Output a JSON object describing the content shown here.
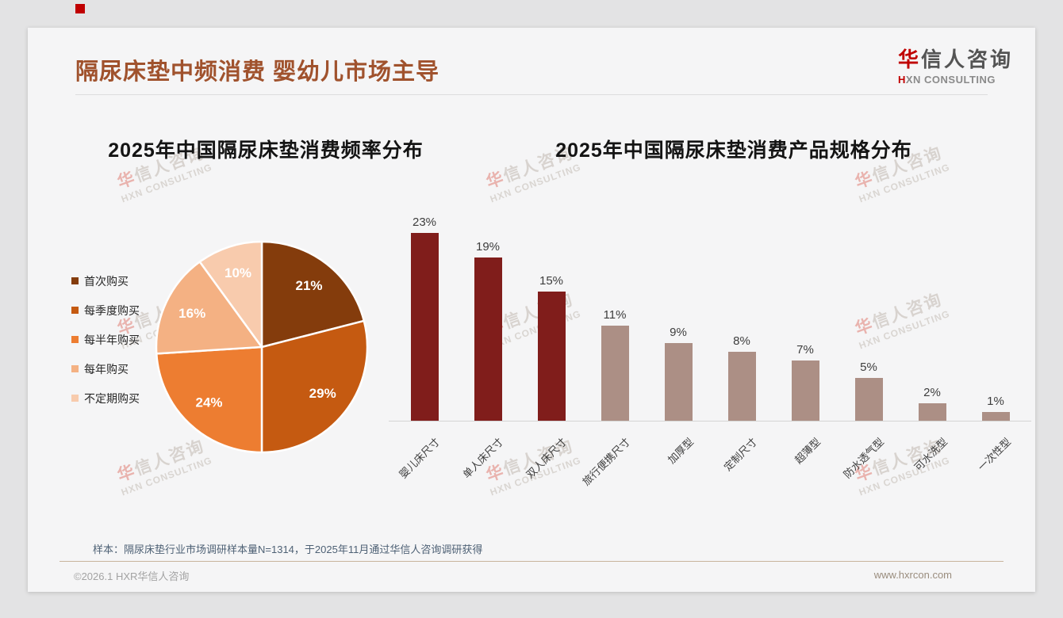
{
  "page": {
    "title": "隔尿床垫中频消费 婴幼儿市场主导"
  },
  "logo": {
    "zh_first": "华",
    "zh_rest": "信人咨询",
    "en_first": "H",
    "en_rest": "XN CONSULTING"
  },
  "watermark": {
    "zh_first": "华",
    "zh_rest": "信人咨询",
    "en": "HXN CONSULTING"
  },
  "colors": {
    "title_accent": "#a0522d",
    "logo_red": "#c00000",
    "bar_highlight": "#801d1b",
    "bar_base": "#ac8f85",
    "divider_tan": "#c8b49c"
  },
  "footer": {
    "sample_note": "样本：隔尿床垫行业市场调研样本量N=1314，于2025年11月通过华信人咨询调研获得",
    "copyright": "©2026.1 HXR华信人咨询",
    "website": "www.hxrcon.com"
  },
  "chart_data": [
    {
      "type": "pie",
      "title": "2025年中国隔尿床垫消费频率分布",
      "labels": [
        "首次购买",
        "每季度购买",
        "每半年购买",
        "每年购买",
        "不定期购买"
      ],
      "values": [
        21,
        29,
        24,
        16,
        10
      ],
      "unit": "%",
      "colors": [
        "#843c0c",
        "#c55a11",
        "#ed7d31",
        "#f4b183",
        "#f8cbad"
      ],
      "legend_position": "left",
      "start_angle_deg": 0,
      "direction": "clockwise",
      "slice_label_color": "#ffffff"
    },
    {
      "type": "bar",
      "title": "2025年中国隔尿床垫消费产品规格分布",
      "categories": [
        "婴儿床尺寸",
        "单人床尺寸",
        "双人床尺寸",
        "旅行便携尺寸",
        "加厚型",
        "定制尺寸",
        "超薄型",
        "防水透气型",
        "可水洗型",
        "一次性型"
      ],
      "values": [
        23,
        19,
        15,
        11,
        9,
        8,
        7,
        5,
        2,
        1
      ],
      "unit": "%",
      "highlight_count": 3,
      "highlight_color": "#801d1b",
      "base_color": "#ac8f85",
      "ylim": [
        0,
        25
      ],
      "grid": false,
      "value_labels": true,
      "tick_rotation_deg": -45
    }
  ]
}
